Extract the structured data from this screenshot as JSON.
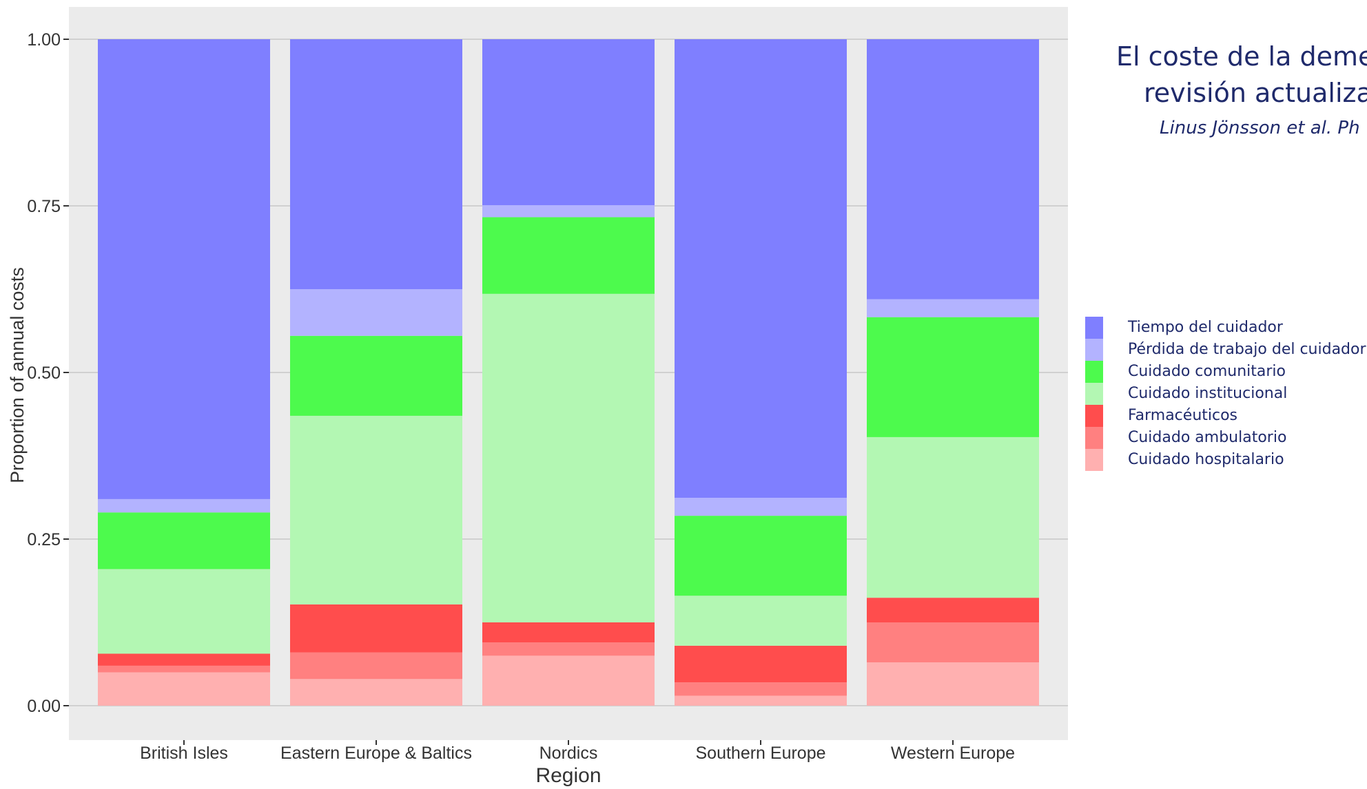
{
  "chart_data": {
    "type": "bar",
    "stacked": true,
    "title_lines": [
      "El coste de la deme",
      "revisión actualiza"
    ],
    "subtitle": "Linus Jönsson et al. Ph",
    "xlabel": "Region",
    "ylabel": "Proportion of annual costs",
    "ylim": [
      0,
      1.05
    ],
    "y_ticks": [
      "0.00",
      "0.25",
      "0.50",
      "0.75",
      "1.00"
    ],
    "y_tick_values": [
      0,
      0.25,
      0.5,
      0.75,
      1.0
    ],
    "categories": [
      "British Isles",
      "Eastern Europe & Baltics",
      "Nordics",
      "Southern Europe",
      "Western Europe"
    ],
    "grid": true,
    "legend_position": "right",
    "series": [
      {
        "name": "Cuidado hospitalario",
        "color": "#ffb0b0",
        "values": [
          0.05,
          0.04,
          0.075,
          0.015,
          0.065
        ]
      },
      {
        "name": "Cuidado ambulatorio",
        "color": "#ff8080",
        "values": [
          0.01,
          0.04,
          0.02,
          0.02,
          0.06
        ]
      },
      {
        "name": "Farmacéuticos",
        "color": "#ff4d4d",
        "values": [
          0.018,
          0.072,
          0.03,
          0.055,
          0.037
        ]
      },
      {
        "name": "Cuidado institucional",
        "color": "#b3f7b3",
        "values": [
          0.127,
          0.283,
          0.493,
          0.075,
          0.241
        ]
      },
      {
        "name": "Cuidado comunitario",
        "color": "#4dfa4d",
        "values": [
          0.085,
          0.12,
          0.115,
          0.12,
          0.18
        ]
      },
      {
        "name": "Pérdida de trabajo del cuidador",
        "color": "#b3b3ff",
        "values": [
          0.02,
          0.07,
          0.018,
          0.027,
          0.027
        ]
      },
      {
        "name": "Tiempo del cuidador",
        "color": "#7f7fff",
        "values": [
          0.69,
          0.375,
          0.249,
          0.688,
          0.39
        ]
      }
    ],
    "legend_order": [
      "Tiempo del cuidador",
      "Pérdida de trabajo del cuidador",
      "Cuidado comunitario",
      "Cuidado institucional",
      "Farmacéuticos",
      "Cuidado ambulatorio",
      "Cuidado hospitalario"
    ],
    "panel_background": "#ebebeb",
    "gridline_color": "#ffffff"
  }
}
